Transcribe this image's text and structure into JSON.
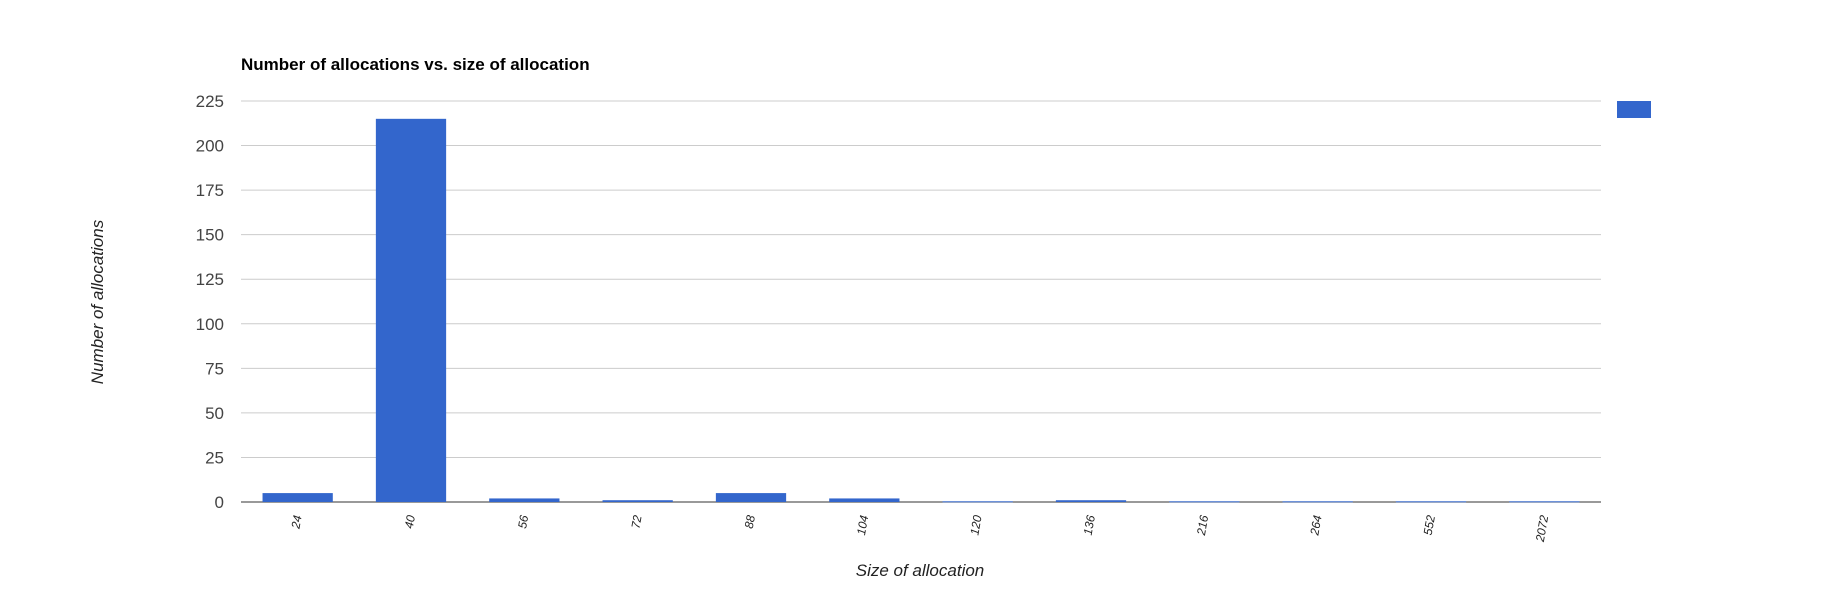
{
  "chart_data": {
    "type": "bar",
    "title": "Number of allocations vs. size of allocation",
    "xlabel": "Size of allocation",
    "ylabel": "Number of allocations",
    "categories": [
      "24",
      "40",
      "56",
      "72",
      "88",
      "104",
      "120",
      "136",
      "216",
      "264",
      "552",
      "2072"
    ],
    "values": [
      5,
      215,
      2,
      1,
      5,
      2,
      0.4,
      1,
      0.4,
      0.4,
      0.4,
      0.4
    ],
    "yticks": [
      "0",
      "25",
      "50",
      "75",
      "100",
      "125",
      "150",
      "175",
      "200",
      "225"
    ],
    "ylim": [
      0,
      225
    ],
    "grid": true,
    "legend": {
      "position": "right",
      "entries": [
        ""
      ]
    },
    "colors": {
      "bar": "#3366cc",
      "grid": "#cccccc",
      "axis": "#333333"
    }
  }
}
